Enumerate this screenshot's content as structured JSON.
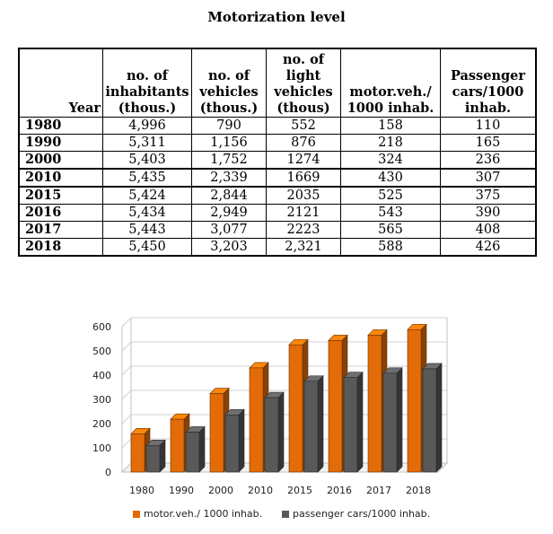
{
  "title": "Motorization level",
  "table": {
    "headers": [
      "Year",
      "no. of inhabitants (thous.)",
      "no. of vehicles (thous.)",
      "no. of light vehicles (thous)",
      "motor.veh./ 1000 inhab.",
      "Passenger cars/1000 inhab."
    ],
    "rows": [
      [
        "1980",
        "4,996",
        "790",
        "552",
        "158",
        "110"
      ],
      [
        "1990",
        "5,311",
        "1,156",
        "876",
        "218",
        "165"
      ],
      [
        "2000",
        "5,403",
        "1,752",
        "1274",
        "324",
        "236"
      ],
      [
        "2010",
        "5,435",
        "2,339",
        "1669",
        "430",
        "307"
      ],
      [
        "2015",
        "5,424",
        "2,844",
        "2035",
        "525",
        "375"
      ],
      [
        "2016",
        "5,434",
        "2,949",
        "2121",
        "543",
        "390"
      ],
      [
        "2017",
        "5,443",
        "3,077",
        "2223",
        "565",
        "408"
      ],
      [
        "2018",
        "5,450",
        "3,203",
        "2,321",
        "588",
        "426"
      ]
    ]
  },
  "chart_data": {
    "type": "bar",
    "categories": [
      "1980",
      "1990",
      "2000",
      "2010",
      "2015",
      "2016",
      "2017",
      "2018"
    ],
    "series": [
      {
        "name": "motor.veh./ 1000 inhab.",
        "values": [
          158,
          218,
          324,
          430,
          525,
          543,
          565,
          588
        ],
        "color": "#E36C09"
      },
      {
        "name": "passenger cars/1000 inhab.",
        "values": [
          110,
          165,
          236,
          307,
          375,
          390,
          408,
          426
        ],
        "color": "#595959"
      }
    ],
    "yticks": [
      0,
      100,
      200,
      300,
      400,
      500,
      600
    ],
    "ylim": [
      0,
      600
    ],
    "grid": true,
    "legend_position": "bottom",
    "style": "3d-clustered-column"
  }
}
